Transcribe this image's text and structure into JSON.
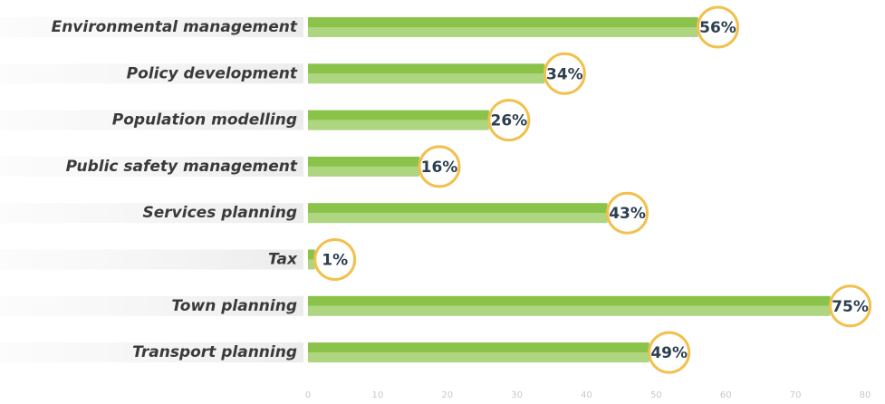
{
  "chart_data": {
    "type": "bar",
    "orientation": "horizontal",
    "categories": [
      "Environmental management",
      "Policy development",
      "Population modelling",
      "Public safety management",
      "Services planning",
      "Tax",
      "Town planning",
      "Transport planning"
    ],
    "values": [
      56,
      34,
      26,
      16,
      43,
      1,
      75,
      49
    ],
    "value_labels": [
      "56%",
      "34%",
      "26%",
      "16%",
      "43%",
      "1%",
      "75%",
      "49%"
    ],
    "color": "#8bc34a",
    "xlim": [
      0,
      80
    ],
    "xticks": [
      0,
      10,
      20,
      30,
      40,
      50,
      60,
      70,
      80
    ],
    "grid": false
  }
}
